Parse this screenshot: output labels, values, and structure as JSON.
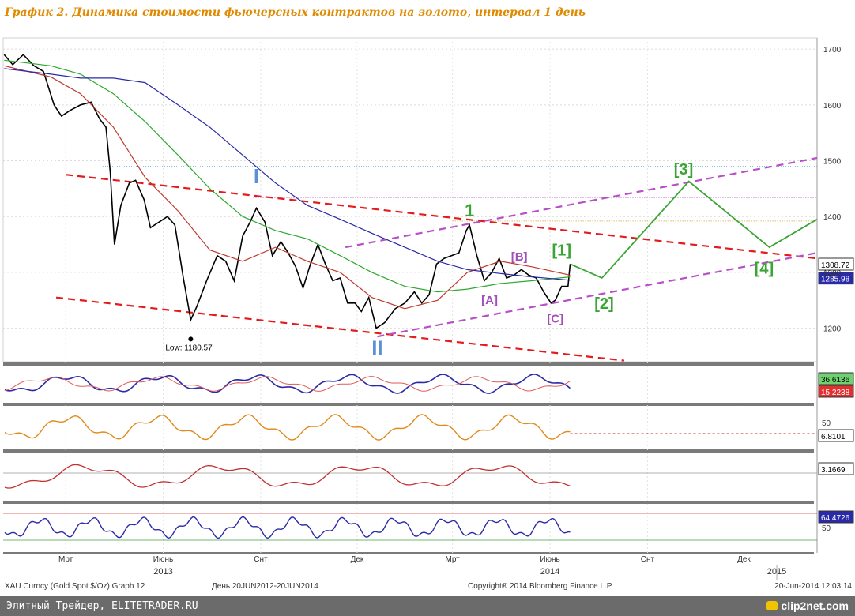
{
  "header": {
    "title": "График 2.   Динамика стоимости фьючерсных контрактов на золото, интервал 1 день"
  },
  "footer": {
    "left_text": "Элитный Трейдер, ELITETRADER.RU",
    "logo_text": "clip2net.com"
  },
  "chart_data": {
    "type": "line",
    "title": "График 2.   Динамика стоимости фьючерсных контрактов на золото, интервал 1 день",
    "y_range": [
      1140,
      1720
    ],
    "y_ticks": [
      1200,
      1300,
      1400,
      1500,
      1600,
      1700
    ],
    "x_ticks": [
      {
        "label": "Мрт",
        "date": "2013-03-01"
      },
      {
        "label": "Июнь",
        "date": "2013-06-01"
      },
      {
        "label": "Снт",
        "date": "2013-09-01"
      },
      {
        "label": "Дек",
        "date": "2013-12-01"
      },
      {
        "label": "Мрт",
        "date": "2014-03-01"
      },
      {
        "label": "Июнь",
        "date": "2014-06-01"
      },
      {
        "label": "Снт",
        "date": "2014-09-01"
      },
      {
        "label": "Дек",
        "date": "2014-12-01"
      }
    ],
    "years": [
      {
        "label": "2013",
        "date": "2013-06-01"
      },
      {
        "label": "2014",
        "date": "2014-06-01"
      },
      {
        "label": "2015",
        "date": "2015-01-01"
      }
    ],
    "series": [
      {
        "name": "XAU Curncy",
        "color": "#000000",
        "points": [
          [
            "2013-01-02",
            1690
          ],
          [
            "2013-01-10",
            1672
          ],
          [
            "2013-01-20",
            1690
          ],
          [
            "2013-01-30",
            1670
          ],
          [
            "2013-02-08",
            1660
          ],
          [
            "2013-02-18",
            1600
          ],
          [
            "2013-02-25",
            1580
          ],
          [
            "2013-03-05",
            1590
          ],
          [
            "2013-03-15",
            1600
          ],
          [
            "2013-03-25",
            1605
          ],
          [
            "2013-04-02",
            1575
          ],
          [
            "2013-04-08",
            1560
          ],
          [
            "2013-04-12",
            1480
          ],
          [
            "2013-04-16",
            1350
          ],
          [
            "2013-04-22",
            1420
          ],
          [
            "2013-04-30",
            1460
          ],
          [
            "2013-05-06",
            1465
          ],
          [
            "2013-05-14",
            1430
          ],
          [
            "2013-05-20",
            1380
          ],
          [
            "2013-05-28",
            1390
          ],
          [
            "2013-06-05",
            1400
          ],
          [
            "2013-06-12",
            1385
          ],
          [
            "2013-06-20",
            1290
          ],
          [
            "2013-06-27",
            1215
          ],
          [
            "2013-07-03",
            1240
          ],
          [
            "2013-07-12",
            1285
          ],
          [
            "2013-07-22",
            1330
          ],
          [
            "2013-07-30",
            1320
          ],
          [
            "2013-08-07",
            1285
          ],
          [
            "2013-08-15",
            1365
          ],
          [
            "2013-08-22",
            1390
          ],
          [
            "2013-08-28",
            1415
          ],
          [
            "2013-09-05",
            1390
          ],
          [
            "2013-09-12",
            1330
          ],
          [
            "2013-09-20",
            1355
          ],
          [
            "2013-09-27",
            1335
          ],
          [
            "2013-10-04",
            1310
          ],
          [
            "2013-10-11",
            1272
          ],
          [
            "2013-10-18",
            1315
          ],
          [
            "2013-10-25",
            1350
          ],
          [
            "2013-11-01",
            1315
          ],
          [
            "2013-11-08",
            1285
          ],
          [
            "2013-11-15",
            1290
          ],
          [
            "2013-11-22",
            1245
          ],
          [
            "2013-11-29",
            1245
          ],
          [
            "2013-12-05",
            1230
          ],
          [
            "2013-12-12",
            1255
          ],
          [
            "2013-12-19",
            1200
          ],
          [
            "2013-12-27",
            1210
          ],
          [
            "2014-01-06",
            1235
          ],
          [
            "2014-01-15",
            1245
          ],
          [
            "2014-01-24",
            1265
          ],
          [
            "2014-01-31",
            1245
          ],
          [
            "2014-02-07",
            1260
          ],
          [
            "2014-02-14",
            1315
          ],
          [
            "2014-02-21",
            1325
          ],
          [
            "2014-02-28",
            1330
          ],
          [
            "2014-03-07",
            1335
          ],
          [
            "2014-03-14",
            1375
          ],
          [
            "2014-03-17",
            1385
          ],
          [
            "2014-03-24",
            1330
          ],
          [
            "2014-03-31",
            1285
          ],
          [
            "2014-04-07",
            1300
          ],
          [
            "2014-04-14",
            1325
          ],
          [
            "2014-04-21",
            1290
          ],
          [
            "2014-04-28",
            1295
          ],
          [
            "2014-05-05",
            1305
          ],
          [
            "2014-05-12",
            1295
          ],
          [
            "2014-05-19",
            1290
          ],
          [
            "2014-05-26",
            1265
          ],
          [
            "2014-06-02",
            1245
          ],
          [
            "2014-06-06",
            1250
          ],
          [
            "2014-06-12",
            1275
          ],
          [
            "2014-06-18",
            1275
          ],
          [
            "2014-06-20",
            1315
          ]
        ]
      },
      {
        "name": "MA (red)",
        "color": "#c0392b",
        "points": [
          [
            "2013-01-02",
            1670
          ],
          [
            "2013-02-15",
            1650
          ],
          [
            "2013-03-15",
            1620
          ],
          [
            "2013-04-15",
            1560
          ],
          [
            "2013-05-15",
            1470
          ],
          [
            "2013-06-15",
            1410
          ],
          [
            "2013-07-15",
            1340
          ],
          [
            "2013-08-15",
            1320
          ],
          [
            "2013-09-15",
            1345
          ],
          [
            "2013-10-15",
            1320
          ],
          [
            "2013-11-15",
            1300
          ],
          [
            "2013-12-15",
            1255
          ],
          [
            "2014-01-15",
            1235
          ],
          [
            "2014-02-15",
            1250
          ],
          [
            "2014-03-15",
            1300
          ],
          [
            "2014-04-15",
            1320
          ],
          [
            "2014-05-15",
            1310
          ],
          [
            "2014-06-20",
            1295
          ]
        ]
      },
      {
        "name": "MA (green)",
        "color": "#2ea82e",
        "points": [
          [
            "2013-01-02",
            1680
          ],
          [
            "2013-02-15",
            1670
          ],
          [
            "2013-03-15",
            1655
          ],
          [
            "2013-04-15",
            1620
          ],
          [
            "2013-05-15",
            1570
          ],
          [
            "2013-06-15",
            1510
          ],
          [
            "2013-07-15",
            1450
          ],
          [
            "2013-08-15",
            1400
          ],
          [
            "2013-09-15",
            1375
          ],
          [
            "2013-10-15",
            1360
          ],
          [
            "2013-11-15",
            1330
          ],
          [
            "2013-12-15",
            1300
          ],
          [
            "2014-01-15",
            1275
          ],
          [
            "2014-02-15",
            1265
          ],
          [
            "2014-03-15",
            1270
          ],
          [
            "2014-04-15",
            1280
          ],
          [
            "2014-05-15",
            1285
          ],
          [
            "2014-06-20",
            1292
          ]
        ]
      },
      {
        "name": "MA (blue)",
        "color": "#2a2aa8",
        "points": [
          [
            "2013-01-02",
            1665
          ],
          [
            "2013-02-15",
            1655
          ],
          [
            "2013-03-15",
            1648
          ],
          [
            "2013-04-15",
            1648
          ],
          [
            "2013-05-15",
            1640
          ],
          [
            "2013-06-15",
            1600
          ],
          [
            "2013-07-15",
            1560
          ],
          [
            "2013-08-15",
            1510
          ],
          [
            "2013-09-15",
            1460
          ],
          [
            "2013-10-15",
            1420
          ],
          [
            "2013-11-15",
            1395
          ],
          [
            "2013-12-15",
            1370
          ],
          [
            "2014-01-15",
            1345
          ],
          [
            "2014-02-15",
            1320
          ],
          [
            "2014-03-15",
            1305
          ],
          [
            "2014-04-15",
            1298
          ],
          [
            "2014-05-15",
            1292
          ],
          [
            "2014-06-20",
            1286
          ]
        ]
      }
    ],
    "annotations": {
      "last_price": "1308.72",
      "ma_value": "1285.98",
      "low_label": "Low: 1180.57",
      "wave_labels": [
        "I",
        "II",
        "1",
        "[A]",
        "[B]",
        "[C]",
        "[1]",
        "[2]",
        "[3]",
        "[4]"
      ]
    },
    "indicators": [
      {
        "name": "panel-1",
        "values": [
          "36.6136",
          "15.2238"
        ]
      },
      {
        "name": "panel-2",
        "tick": "50",
        "values": [
          "6.8101"
        ]
      },
      {
        "name": "panel-3",
        "values": [
          "3.1669"
        ]
      },
      {
        "name": "panel-4",
        "tick": "50",
        "values": [
          "64.4726"
        ]
      }
    ],
    "bottom_info": {
      "instrument": "XAU Curncy (Gold Spot  $/Oz) Graph 12",
      "range": "День 20JUN2012-20JUN2014",
      "copyright": "Copyright® 2014 Bloomberg Finance L.P.",
      "timestamp": "20-Jun-2014 12:03:14"
    },
    "colors": {
      "price": "#000000",
      "trend_red": "#e41a1c",
      "channel_purple": "#b84fc8",
      "projection_green": "#3aa535",
      "wave_blue": "#5b8fd6",
      "wave_green": "#3aa535",
      "wave_purple": "#a04fb6"
    }
  }
}
